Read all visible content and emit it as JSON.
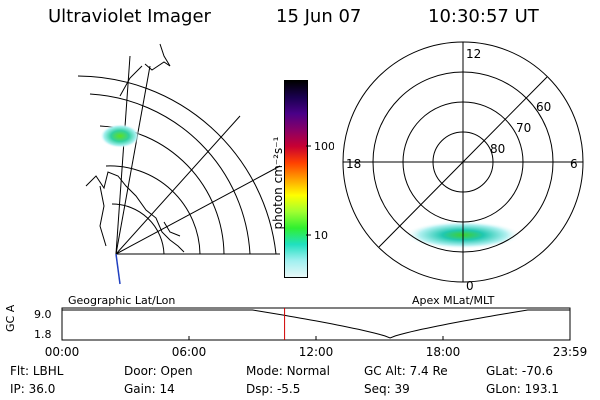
{
  "header": {
    "instrument": "Ultraviolet Imager",
    "date": "15 Jun 07",
    "time": "10:30:57 UT"
  },
  "left_map": {
    "label": "Geographic Lat/Lon"
  },
  "right_map": {
    "label": "Apex MLat/MLT",
    "mlt_labels": [
      "12",
      "18",
      "6",
      "0"
    ],
    "lat_labels": [
      "60",
      "70",
      "80"
    ]
  },
  "colorbar": {
    "axis_label": "photon cm⁻²s⁻¹",
    "tick_labels": [
      "100",
      "10"
    ],
    "colors": [
      "#000000",
      "#1a0050",
      "#4a0088",
      "#880066",
      "#c80032",
      "#ff4000",
      "#ffa000",
      "#ffff00",
      "#a0ff30",
      "#30f030",
      "#20e0c0",
      "#a0f0f0",
      "#e8f8f8"
    ]
  },
  "orbit": {
    "ylabel": "GC Alt",
    "y_ticks": [
      "9.0",
      "1.8"
    ],
    "x_ticks": [
      "00:00",
      "06:00",
      "12:00",
      "18:00",
      "23:59"
    ],
    "marker_time": "10:30:57"
  },
  "status": [
    {
      "key": "Flt:",
      "value": "LBHL"
    },
    {
      "key": "Door:",
      "value": "Open"
    },
    {
      "key": "Mode:",
      "value": "Normal"
    },
    {
      "key": "GC Alt:",
      "value": "7.4 Re"
    },
    {
      "key": "GLat:",
      "value": "-70.6"
    },
    {
      "key": "IP:",
      "value": "36.0"
    },
    {
      "key": "Gain:",
      "value": "14"
    },
    {
      "key": "Dsp:",
      "value": "-5.5"
    },
    {
      "key": "Seq:",
      "value": "39"
    },
    {
      "key": "GLon:",
      "value": "193.1"
    }
  ]
}
